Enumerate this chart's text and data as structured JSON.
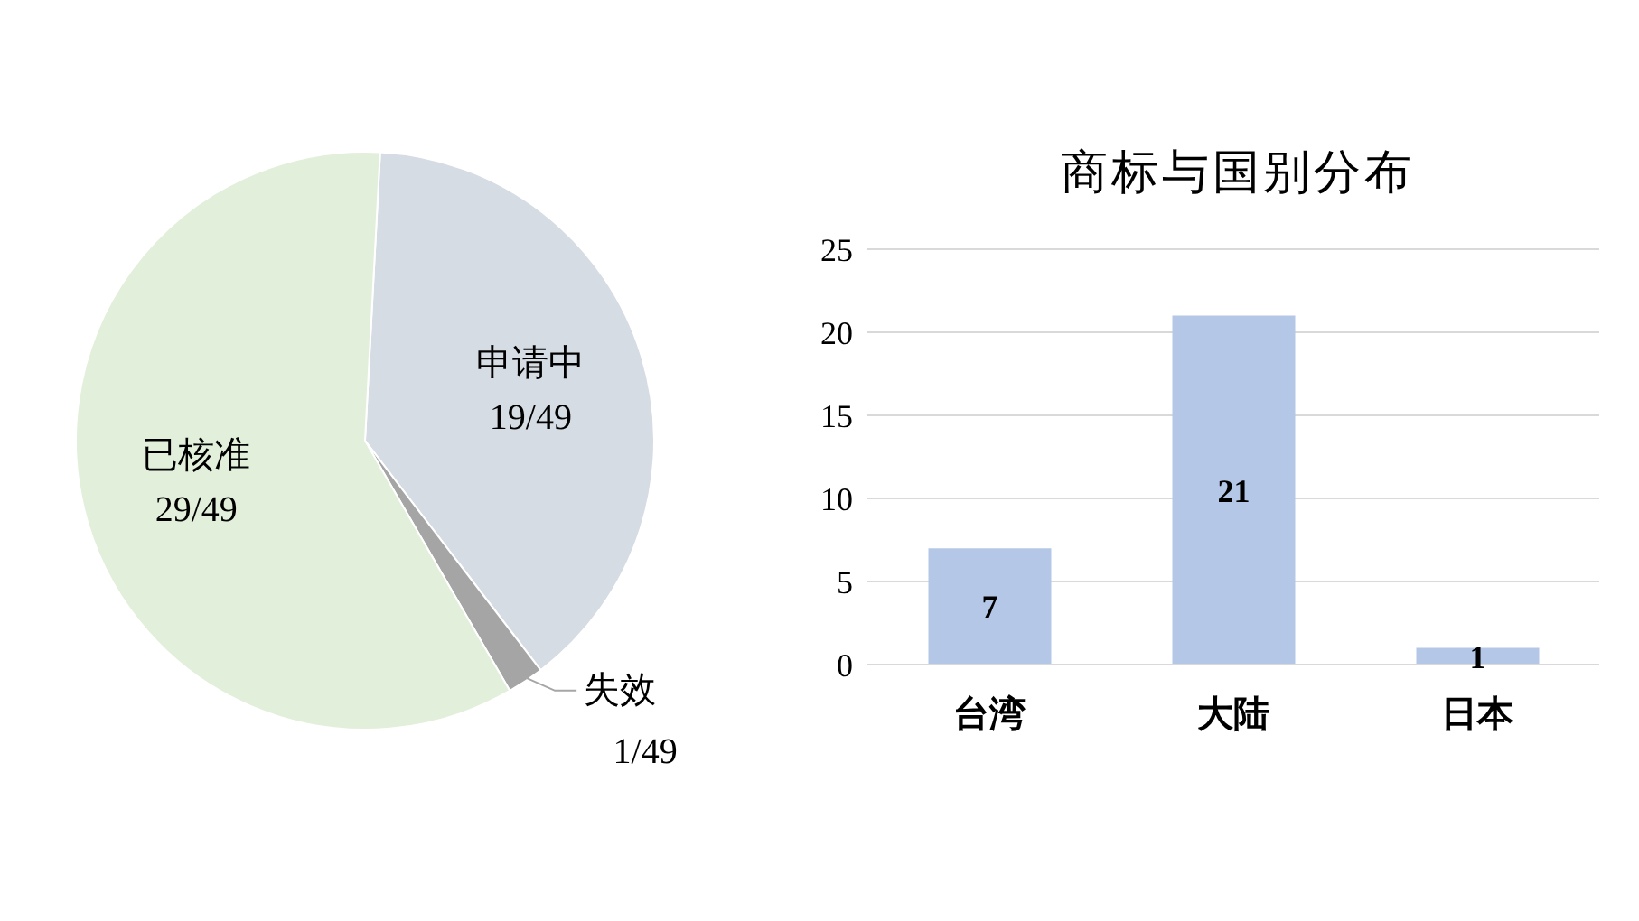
{
  "chart_data": [
    {
      "type": "pie",
      "categories": [
        "申请中",
        "失效",
        "已核准"
      ],
      "values": [
        19,
        1,
        29
      ],
      "value_labels": [
        "19/49",
        "1/49",
        "29/49"
      ],
      "colors": [
        "#d6dce4",
        "#a5a5a5",
        "#e2efda"
      ]
    },
    {
      "type": "bar",
      "title": "商标与国别分布",
      "categories": [
        "台湾",
        "大陆",
        "日本"
      ],
      "values": [
        7,
        21,
        1
      ],
      "color": "#b4c7e7",
      "ylim": [
        0,
        25
      ],
      "yticks": [
        0,
        5,
        10,
        15,
        20,
        25
      ],
      "grid": "y",
      "data_labels": true
    }
  ]
}
